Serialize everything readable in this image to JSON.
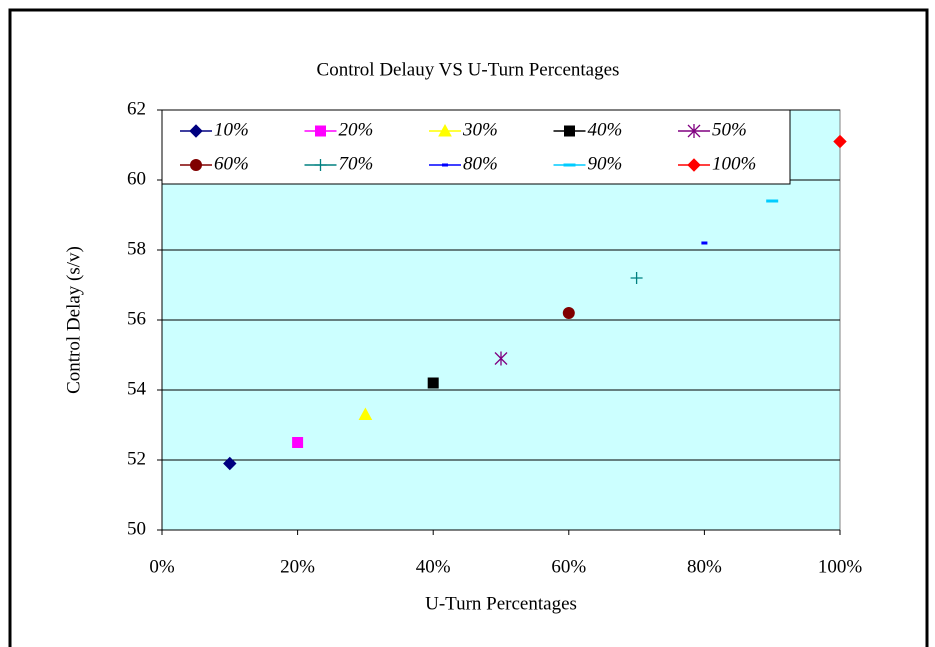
{
  "chart_data": {
    "type": "scatter",
    "title": "Control Delauy VS U-Turn Percentages",
    "x_label": "U-Turn Percentages",
    "y_label": "Control Delay (s/v)",
    "xlim": [
      0,
      100
    ],
    "xticks": [
      {
        "value": 0,
        "label": "0%"
      },
      {
        "value": 20,
        "label": "20%"
      },
      {
        "value": 40,
        "label": "40%"
      },
      {
        "value": 60,
        "label": "60%"
      },
      {
        "value": 80,
        "label": "80%"
      },
      {
        "value": 100,
        "label": "100%"
      }
    ],
    "ylim": [
      50,
      62
    ],
    "yticks": [
      50,
      52,
      54,
      56,
      58,
      60,
      62
    ],
    "grid": true,
    "plot_background": "#ccffff",
    "legend_position": "top",
    "series": [
      {
        "name": "10%",
        "color": "#000080",
        "marker": "diamond",
        "x": [
          10
        ],
        "values": [
          51.9
        ]
      },
      {
        "name": "20%",
        "color": "#ff00ff",
        "marker": "square",
        "x": [
          20
        ],
        "values": [
          52.5
        ]
      },
      {
        "name": "30%",
        "color": "#ffff00",
        "marker": "triangle",
        "x": [
          30
        ],
        "values": [
          53.3
        ]
      },
      {
        "name": "40%",
        "color": "#000000",
        "marker": "square",
        "x": [
          40
        ],
        "values": [
          54.2
        ]
      },
      {
        "name": "50%",
        "color": "#800080",
        "marker": "asterisk",
        "x": [
          50
        ],
        "values": [
          54.9
        ]
      },
      {
        "name": "60%",
        "color": "#800000",
        "marker": "circle",
        "x": [
          60
        ],
        "values": [
          56.2
        ]
      },
      {
        "name": "70%",
        "color": "#008080",
        "marker": "plus",
        "x": [
          70
        ],
        "values": [
          57.2
        ]
      },
      {
        "name": "80%",
        "color": "#0000ff",
        "marker": "dash",
        "x": [
          80
        ],
        "values": [
          58.2
        ]
      },
      {
        "name": "90%",
        "color": "#00ccff",
        "marker": "dash",
        "x": [
          90
        ],
        "values": [
          59.4
        ]
      },
      {
        "name": "100%",
        "color": "#ff0000",
        "marker": "diamond",
        "x": [
          100
        ],
        "values": [
          61.1
        ]
      }
    ]
  }
}
